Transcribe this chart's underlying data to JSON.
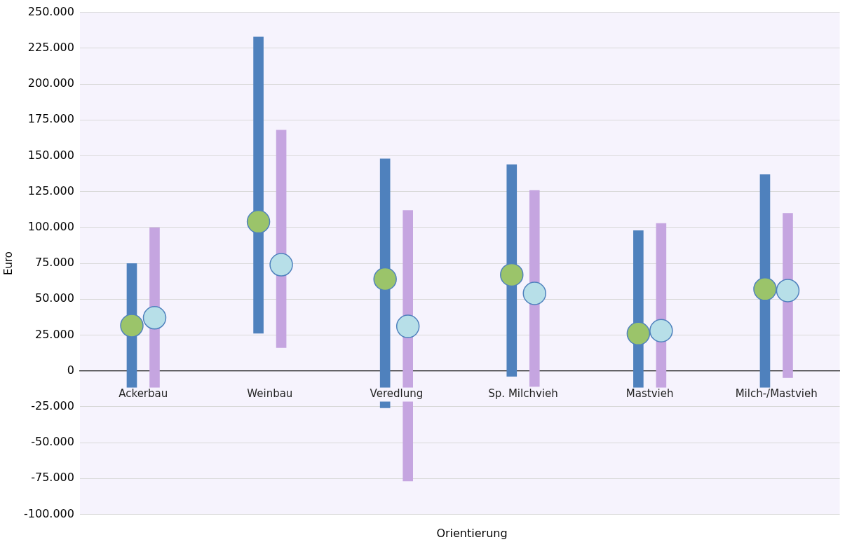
{
  "chart_data": {
    "type": "bar",
    "xlabel": "Orientierung",
    "ylabel": "Euro",
    "categories": [
      "Ackerbau",
      "Weinbau",
      "Veredlung",
      "Sp. Milchvieh",
      "Mastvieh",
      "Milch-/Mastvieh"
    ],
    "series": [
      {
        "type": "bar",
        "color": "#4f81bd",
        "base": [
          -14000,
          26000,
          -26000,
          -4000,
          -16000,
          -15000
        ],
        "values": [
          89000,
          207000,
          174000,
          148000,
          114000,
          152000
        ]
      },
      {
        "type": "bar",
        "color": "#c5a5e0",
        "base": [
          -12000,
          16000,
          -77000,
          -11000,
          -13000,
          -5000
        ],
        "values": [
          112000,
          152000,
          189000,
          137000,
          116000,
          115000
        ]
      },
      {
        "type": "scatter",
        "color": "#9bc46a",
        "x": [
          "Ackerbau",
          "Weinbau",
          "Veredlung",
          "Sp. Milchvieh",
          "Mastvieh",
          "Milch-/Mastvieh"
        ],
        "values": [
          31500,
          104000,
          64000,
          67000,
          26000,
          57000
        ]
      },
      {
        "type": "scatter",
        "color": "#b7dfe8",
        "x": [
          "Ackerbau",
          "Weinbau",
          "Veredlung",
          "Sp. Milchvieh",
          "Mastvieh",
          "Milch-/Mastvieh"
        ],
        "values": [
          37000,
          74000,
          31000,
          54000,
          28000,
          56000
        ]
      }
    ],
    "marker": "circle",
    "ylim": [
      -100000,
      250000
    ],
    "yticks": [
      {
        "value": -100000,
        "label": "-100.000"
      },
      {
        "value": -75000,
        "label": "-75.000"
      },
      {
        "value": -50000,
        "label": "-50.000"
      },
      {
        "value": -25000,
        "label": "-25.000"
      },
      0,
      {
        "value": 25000,
        "label": "25.000"
      },
      {
        "value": 50000,
        "label": "50.000"
      },
      {
        "value": 75000,
        "label": "75.000"
      },
      {
        "value": 100000,
        "label": "100.000"
      },
      {
        "value": 125000,
        "label": "125.000"
      },
      {
        "value": 150000,
        "label": "150.000"
      },
      {
        "value": 175000,
        "label": "175.000"
      },
      {
        "value": 200000,
        "label": "200.000"
      },
      {
        "value": 225000,
        "label": "225.000"
      },
      {
        "value": 250000,
        "label": "250.000"
      }
    ],
    "grid": "y",
    "legend": false
  }
}
